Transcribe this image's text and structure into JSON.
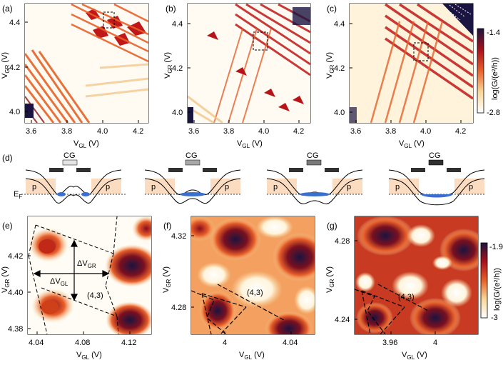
{
  "figure": {
    "colors": {
      "dark": "#1a1440",
      "red": "#b3101a",
      "orange": "#e8602a",
      "yellow": "#f8d79a",
      "bg": "#fffaf0",
      "p_fill": "#fbdcc0",
      "dot_blue": "#3a6fd0"
    }
  },
  "panels_top": [
    {
      "label": "(a)",
      "xlabel_main": "V",
      "xlabel_sub": "GL",
      "xlabel_unit": " (V)",
      "ylabel_main": "V",
      "ylabel_sub": "GR",
      "ylabel_unit": " (V)",
      "xticks": [
        "3.6",
        "3.8",
        "4.0",
        "4.2"
      ],
      "yticks": [
        "4.4",
        "4.2",
        "4.0"
      ]
    },
    {
      "label": "(b)",
      "xlabel_main": "V",
      "xlabel_sub": "GL",
      "xlabel_unit": " (V)",
      "ylabel_main": "V",
      "ylabel_sub": "GR",
      "ylabel_unit": " (V)",
      "xticks": [
        "3.6",
        "3.8",
        "4.0",
        "4.2"
      ],
      "yticks": [
        "4.4",
        "4.2",
        "4.0"
      ]
    },
    {
      "label": "(c)",
      "xlabel_main": "V",
      "xlabel_sub": "GL",
      "xlabel_unit": " (V)",
      "ylabel_main": "V",
      "ylabel_sub": "GR",
      "ylabel_unit": " (V)",
      "xticks": [
        "3.6",
        "3.8",
        "4.0",
        "4.2"
      ],
      "yticks": [
        "4.4",
        "4.2",
        "4.0"
      ]
    }
  ],
  "colorbar_top": {
    "max": "-1.4",
    "min": "-2.8",
    "label": "log(G/(e²/h))"
  },
  "panel_d": {
    "label": "(d)",
    "gate_label": "CG",
    "lead_label": "p",
    "fermi_label": "E",
    "fermi_sub": "F",
    "gate_colors": [
      "#e4e4e4",
      "#a8a8a8",
      "#7a7a7a",
      "#303030"
    ]
  },
  "panels_bottom": [
    {
      "label": "(e)",
      "xlabel_main": "V",
      "xlabel_sub": "GL",
      "xlabel_unit": " (V)",
      "ylabel_main": "V",
      "ylabel_sub": "GR",
      "ylabel_unit": " (V)",
      "xticks": [
        "4.04",
        "4.08",
        "4.12"
      ],
      "yticks": [
        "4.42",
        "4.40",
        "4.38"
      ],
      "state": "(4,3)",
      "dgr_main": "ΔV",
      "dgr_sub": "GR",
      "dgl_main": "ΔV",
      "dgl_sub": "GL"
    },
    {
      "label": "(f)",
      "xlabel_main": "V",
      "xlabel_sub": "GL",
      "xlabel_unit": " (V)",
      "ylabel_main": "V",
      "ylabel_sub": "GR",
      "ylabel_unit": " (V)",
      "xticks": [
        "4",
        "4.04"
      ],
      "yticks": [
        "4.32",
        "4.28"
      ],
      "state": "(4,3)"
    },
    {
      "label": "(g)",
      "xlabel_main": "V",
      "xlabel_sub": "GL",
      "xlabel_unit": " (V)",
      "ylabel_main": "V",
      "ylabel_sub": "GR",
      "ylabel_unit": " (V)",
      "xticks": [
        "3.96",
        "4"
      ],
      "yticks": [
        "4.28",
        "4.24"
      ],
      "state": "(4,3)"
    }
  ],
  "colorbar_bottom": {
    "max": "-1.9",
    "min": "-3",
    "label": "log(G/(e²/h))"
  }
}
